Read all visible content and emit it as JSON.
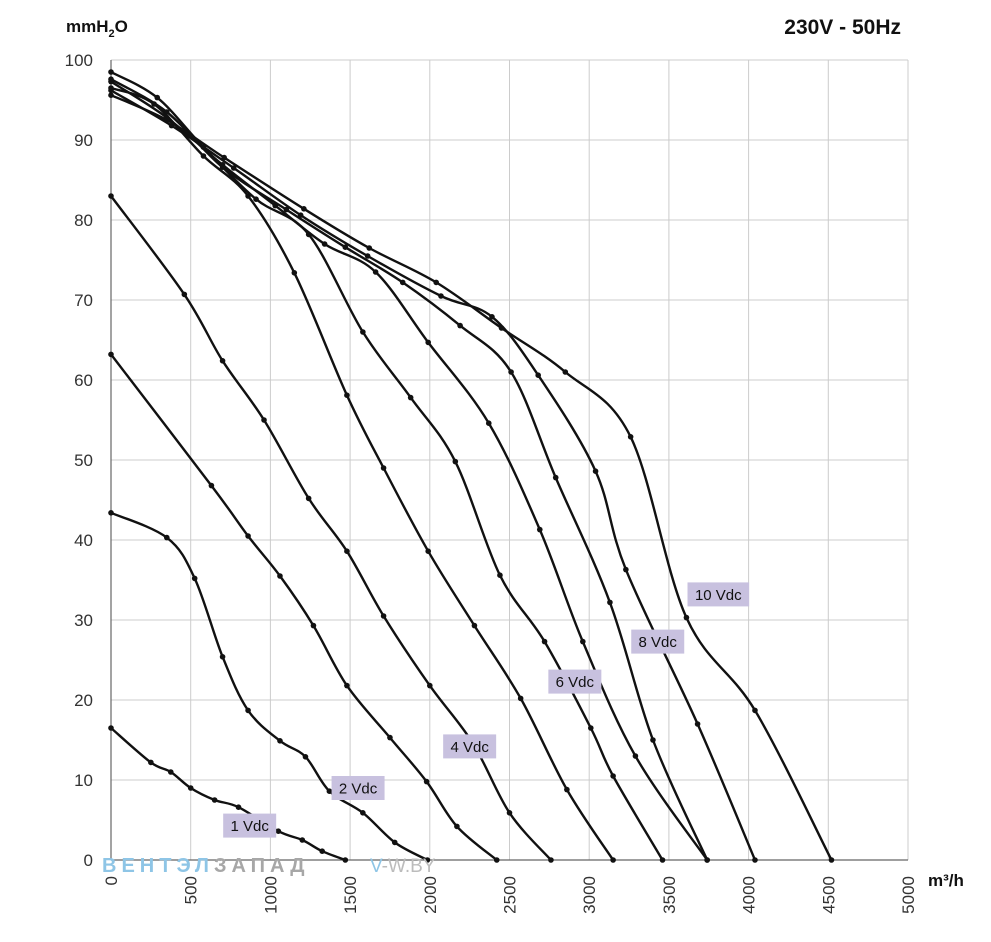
{
  "chart_data": {
    "type": "line",
    "title": "230V - 50Hz",
    "ylabel": {
      "main": "mmH",
      "sub": "2",
      "tail": "O"
    },
    "xlabel": "m³/h",
    "xlim": [
      0,
      5000
    ],
    "ylim": [
      0,
      100
    ],
    "xticks": [
      0,
      500,
      1000,
      1500,
      2000,
      2500,
      3000,
      3500,
      4000,
      4500,
      5000
    ],
    "yticks": [
      0,
      10,
      20,
      30,
      40,
      50,
      60,
      70,
      80,
      90,
      100
    ],
    "grid": true,
    "series": [
      {
        "name": "1 Vdc",
        "points": [
          [
            0,
            16.5
          ],
          [
            250,
            12.2
          ],
          [
            375,
            11
          ],
          [
            500,
            9
          ],
          [
            650,
            7.5
          ],
          [
            800,
            6.6
          ],
          [
            1050,
            3.6
          ],
          [
            1200,
            2.5
          ],
          [
            1325,
            1.1
          ],
          [
            1470,
            0
          ]
        ]
      },
      {
        "name": "",
        "points": [
          [
            0,
            43.4
          ],
          [
            350,
            40.3
          ],
          [
            525,
            35.2
          ],
          [
            700,
            25.4
          ],
          [
            860,
            18.7
          ],
          [
            1060,
            14.9
          ],
          [
            1220,
            12.9
          ],
          [
            1370,
            8.6
          ],
          [
            1580,
            5.9
          ],
          [
            1780,
            2.2
          ],
          [
            1985,
            0
          ]
        ]
      },
      {
        "name": "2 Vdc",
        "points": [
          [
            0,
            63.2
          ],
          [
            630,
            46.8
          ],
          [
            860,
            40.5
          ],
          [
            1060,
            35.5
          ],
          [
            1270,
            29.3
          ],
          [
            1480,
            21.8
          ],
          [
            1750,
            15.3
          ],
          [
            1980,
            9.8
          ],
          [
            2170,
            4.2
          ],
          [
            2420,
            0
          ]
        ]
      },
      {
        "name": "",
        "points": [
          [
            0,
            83
          ],
          [
            460,
            70.7
          ],
          [
            700,
            62.4
          ],
          [
            960,
            55
          ],
          [
            1240,
            45.2
          ],
          [
            1480,
            38.6
          ],
          [
            1710,
            30.5
          ],
          [
            2000,
            21.8
          ],
          [
            2270,
            14.6
          ],
          [
            2500,
            5.9
          ],
          [
            2760,
            0
          ]
        ]
      },
      {
        "name": "4 Vdc",
        "points": [
          [
            0,
            96.5
          ],
          [
            270,
            94.5
          ],
          [
            580,
            88
          ],
          [
            860,
            83
          ],
          [
            1150,
            73.4
          ],
          [
            1480,
            58.1
          ],
          [
            1710,
            49
          ],
          [
            1990,
            38.6
          ],
          [
            2280,
            29.3
          ],
          [
            2570,
            20.2
          ],
          [
            2860,
            8.8
          ],
          [
            3150,
            0
          ]
        ]
      },
      {
        "name": "",
        "points": [
          [
            0,
            98.5
          ],
          [
            290,
            95.3
          ],
          [
            580,
            89.1
          ],
          [
            910,
            82.6
          ],
          [
            1240,
            78.2
          ],
          [
            1580,
            66
          ],
          [
            1880,
            57.8
          ],
          [
            2160,
            49.8
          ],
          [
            2440,
            35.6
          ],
          [
            2720,
            27.3
          ],
          [
            3010,
            16.5
          ],
          [
            3150,
            10.5
          ],
          [
            3460,
            0
          ]
        ]
      },
      {
        "name": "6 Vdc",
        "points": [
          [
            0,
            97.3
          ],
          [
            350,
            92.8
          ],
          [
            700,
            86.9
          ],
          [
            1030,
            81.8
          ],
          [
            1340,
            77
          ],
          [
            1660,
            73.5
          ],
          [
            1990,
            64.7
          ],
          [
            2370,
            54.6
          ],
          [
            2690,
            41.3
          ],
          [
            2960,
            27.3
          ],
          [
            3290,
            13
          ],
          [
            3740,
            0
          ]
        ]
      },
      {
        "name": "",
        "points": [
          [
            0,
            97.6
          ],
          [
            350,
            93.5
          ],
          [
            700,
            86.6
          ],
          [
            1100,
            81.3
          ],
          [
            1470,
            76.6
          ],
          [
            1830,
            72.2
          ],
          [
            2190,
            66.8
          ],
          [
            2510,
            61
          ],
          [
            2790,
            47.8
          ],
          [
            3130,
            32.2
          ],
          [
            3400,
            15
          ],
          [
            3740,
            0
          ]
        ]
      },
      {
        "name": "8 Vdc",
        "points": [
          [
            0,
            96.2
          ],
          [
            380,
            91.8
          ],
          [
            770,
            86.5
          ],
          [
            1190,
            80.6
          ],
          [
            1610,
            75.5
          ],
          [
            2070,
            70.5
          ],
          [
            2390,
            67.9
          ],
          [
            2680,
            60.6
          ],
          [
            3040,
            48.6
          ],
          [
            3230,
            36.3
          ],
          [
            3680,
            17
          ],
          [
            4040,
            0
          ]
        ]
      },
      {
        "name": "10 Vdc",
        "points": [
          [
            0,
            95.6
          ],
          [
            350,
            92.5
          ],
          [
            710,
            87.8
          ],
          [
            1210,
            81.4
          ],
          [
            1620,
            76.5
          ],
          [
            2040,
            72.2
          ],
          [
            2450,
            66.5
          ],
          [
            2850,
            61
          ],
          [
            3260,
            52.9
          ],
          [
            3610,
            30.3
          ],
          [
            4040,
            18.7
          ],
          [
            4520,
            0
          ]
        ]
      }
    ],
    "series_labels": [
      {
        "text": "1 Vdc",
        "x": 870,
        "y": 4.3
      },
      {
        "text": "2 Vdc",
        "x": 1550,
        "y": 9
      },
      {
        "text": "4 Vdc",
        "x": 2250,
        "y": 14.2
      },
      {
        "text": "6 Vdc",
        "x": 2910,
        "y": 22.3
      },
      {
        "text": "8 Vdc",
        "x": 3430,
        "y": 27.3
      },
      {
        "text": "10 Vdc",
        "x": 3810,
        "y": 33.2
      }
    ],
    "label_bg": "#c8c1df",
    "line_color": "#111111",
    "grid_color": "#cccccc"
  },
  "watermark": {
    "part1": "ВЕНТЭЛ",
    "part2": "ЗАПАД",
    "part3_a": "V",
    "part3_b": "-W.BY",
    "color_blue": "#8ec5e6",
    "color_gray": "#a7a7a7"
  }
}
